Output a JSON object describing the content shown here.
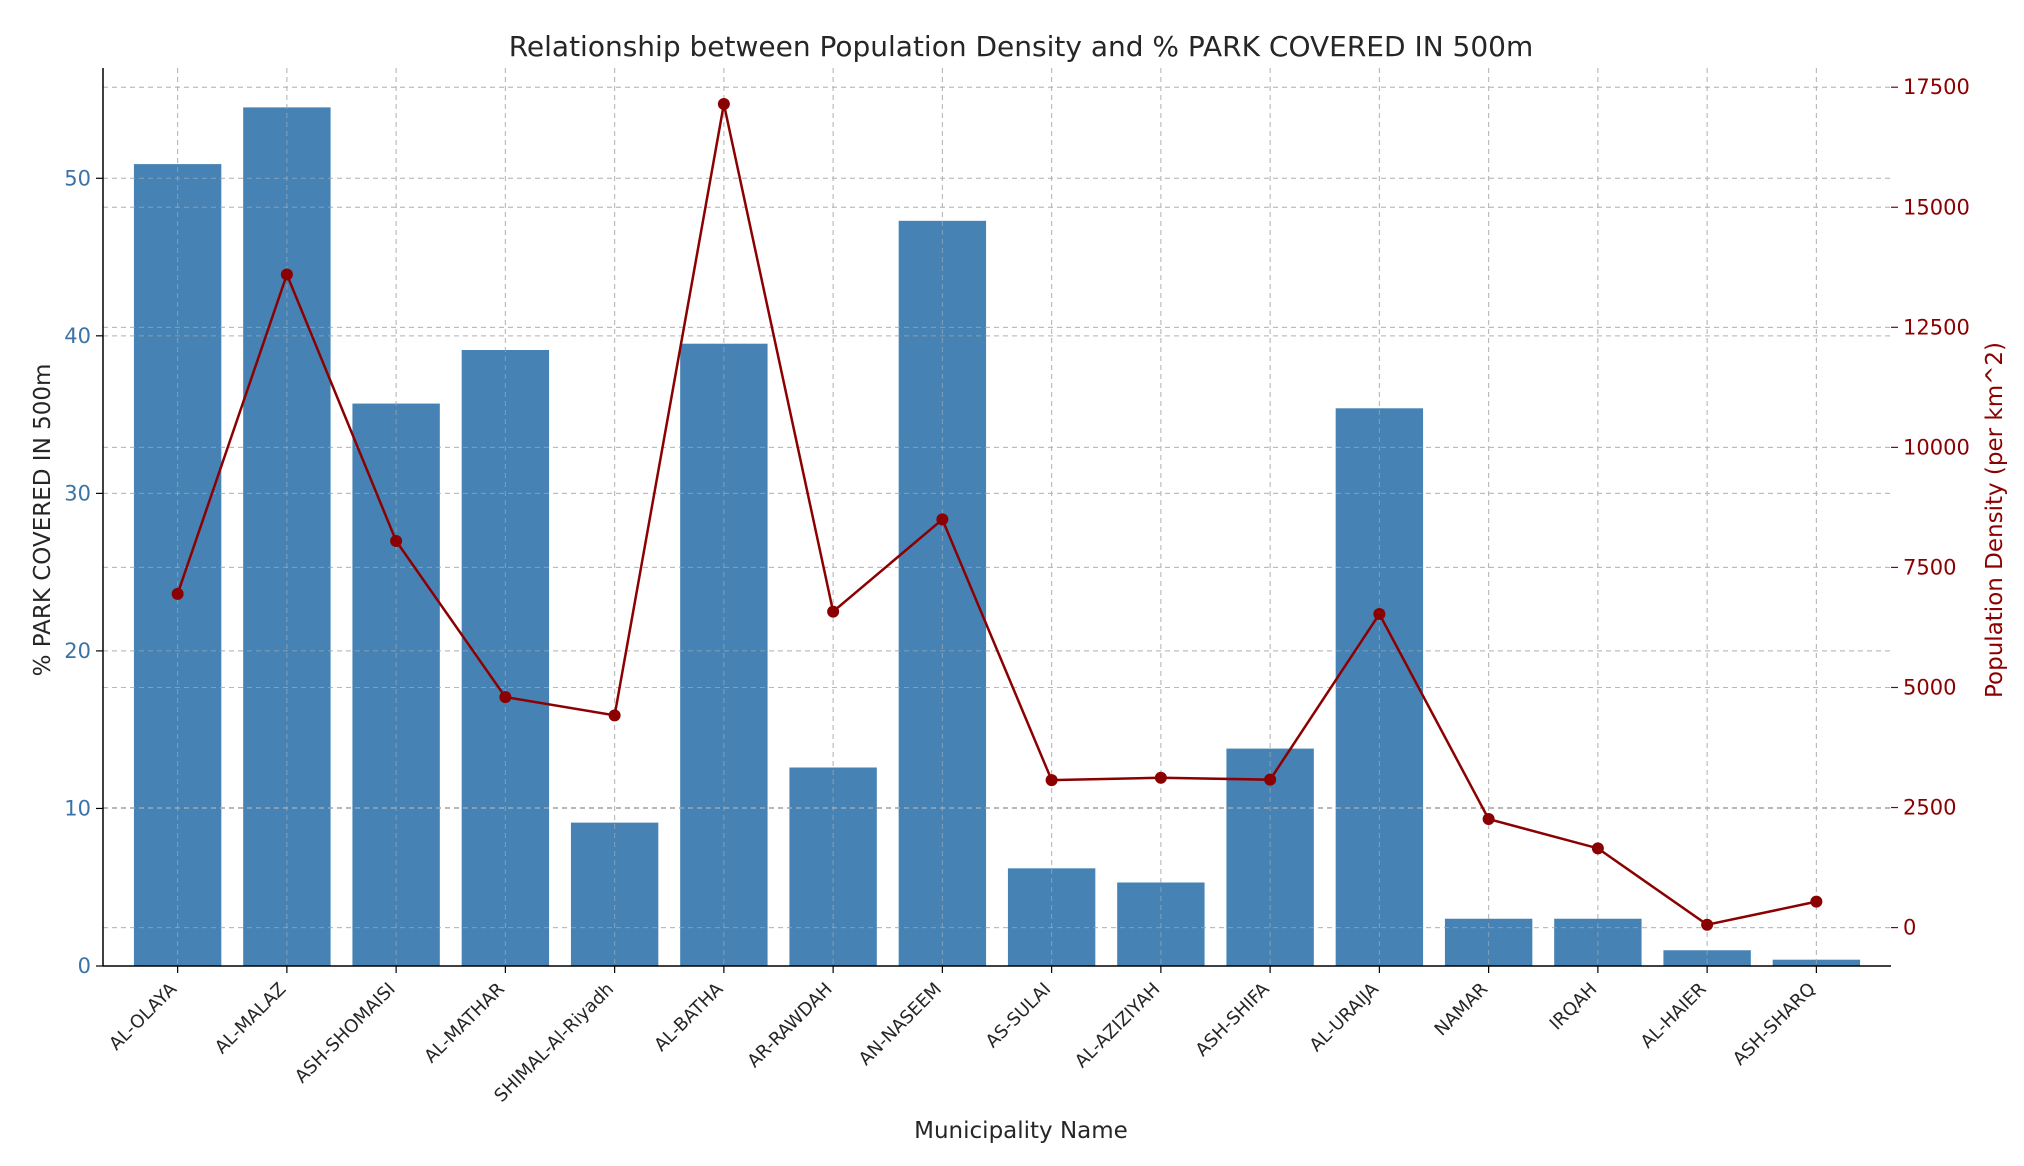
{
  "chart_data": {
    "type": "bar",
    "title": "Relationship between Population Density and % PARK COVERED IN 500m",
    "xlabel": "Municipality Name",
    "ylabel": "% PARK COVERED IN 500m",
    "y2label": "Population Density (per km^2)",
    "categories": [
      "AL-OLAYA",
      "AL-MALAZ",
      "ASH-SHOMAISI",
      "AL-MATHAR",
      "SHIMAL-Al-Riyadh",
      "AL-BATHA",
      "AR-RAWDAH",
      "AN-NASEEM",
      "AS-SULAI",
      "AL-AZIZIYAH",
      "ASH-SHIFA",
      "AL-URAIJA",
      "NAMAR",
      "IRQAH",
      "AL-HAIER",
      "ASH-SHARQ"
    ],
    "ylim": [
      0,
      57
    ],
    "y2lim": [
      -800,
      17900
    ],
    "yticks": [
      0,
      10,
      20,
      30,
      40,
      50
    ],
    "y2ticks": [
      0,
      2500,
      5000,
      7500,
      10000,
      12500,
      15000,
      17500
    ],
    "grid": true,
    "series": [
      {
        "name": "% PARK COVERED IN 500m",
        "type": "bar",
        "axis": "left",
        "color": "#4682b4",
        "values": [
          50.9,
          54.5,
          35.7,
          39.1,
          9.1,
          39.5,
          12.6,
          47.3,
          6.2,
          5.3,
          13.8,
          35.4,
          3.0,
          3.0,
          1.0,
          0.4
        ]
      },
      {
        "name": "Population Density (per km^2)",
        "type": "line",
        "axis": "right",
        "color": "#8b0000",
        "values": [
          6950,
          13600,
          8050,
          4800,
          4420,
          17150,
          6580,
          8500,
          3070,
          3120,
          3080,
          6530,
          2260,
          1650,
          60,
          540
        ]
      }
    ]
  }
}
